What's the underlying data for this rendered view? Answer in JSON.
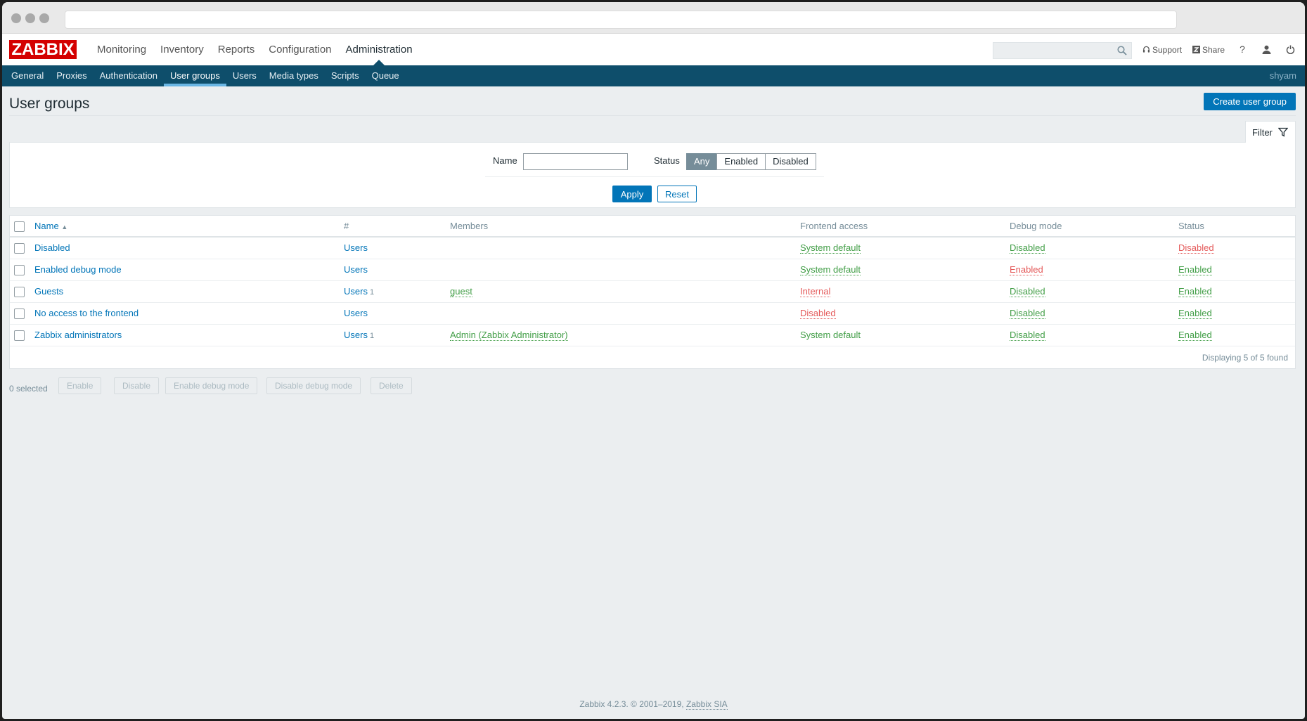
{
  "header": {
    "logo": "ZABBIX",
    "main_menu": [
      "Monitoring",
      "Inventory",
      "Reports",
      "Configuration",
      "Administration"
    ],
    "active_main": "Administration",
    "support_label": "Support",
    "share_label": "Share",
    "help_label": "?"
  },
  "submenu": {
    "items": [
      "General",
      "Proxies",
      "Authentication",
      "User groups",
      "Users",
      "Media types",
      "Scripts",
      "Queue"
    ],
    "active": "User groups",
    "username": "shyam"
  },
  "page": {
    "title": "User groups",
    "create_label": "Create user group"
  },
  "filter": {
    "tab_label": "Filter",
    "name_label": "Name",
    "name_value": "",
    "status_label": "Status",
    "status_options": [
      "Any",
      "Enabled",
      "Disabled"
    ],
    "status_selected": "Any",
    "apply_label": "Apply",
    "reset_label": "Reset"
  },
  "table": {
    "columns": [
      "Name",
      "#",
      "Members",
      "Frontend access",
      "Debug mode",
      "Status"
    ],
    "sort_indicator": "▲",
    "rows": [
      {
        "name": "Disabled",
        "users": "Users",
        "count": "",
        "members": "",
        "frontend": "System default",
        "debug": "Disabled",
        "status": "Disabled"
      },
      {
        "name": "Enabled debug mode",
        "users": "Users",
        "count": "",
        "members": "",
        "frontend": "System default",
        "debug": "Enabled",
        "status": "Enabled"
      },
      {
        "name": "Guests",
        "users": "Users",
        "count": "1",
        "members": "guest",
        "frontend": "Internal",
        "debug": "Disabled",
        "status": "Enabled"
      },
      {
        "name": "No access to the frontend",
        "users": "Users",
        "count": "",
        "members": "",
        "frontend": "Disabled",
        "debug": "Disabled",
        "status": "Enabled"
      },
      {
        "name": "Zabbix administrators",
        "users": "Users",
        "count": "1",
        "members": "Admin (Zabbix Administrator)",
        "frontend": "System default",
        "debug": "Disabled",
        "status": "Enabled"
      }
    ],
    "displaying": "Displaying 5 of 5 found"
  },
  "actions": {
    "selected": "0 selected",
    "buttons": [
      "Enable",
      "Disable",
      "Enable debug mode",
      "Disable debug mode",
      "Delete"
    ]
  },
  "footer": {
    "text": "Zabbix 4.2.3. © 2001–2019,",
    "link": "Zabbix SIA"
  },
  "colors": {
    "brand_red": "#d40000",
    "nav_blue": "#0e4e6b",
    "primary": "#0275b8",
    "ok_green": "#429e47",
    "problem_red": "#e45959"
  }
}
